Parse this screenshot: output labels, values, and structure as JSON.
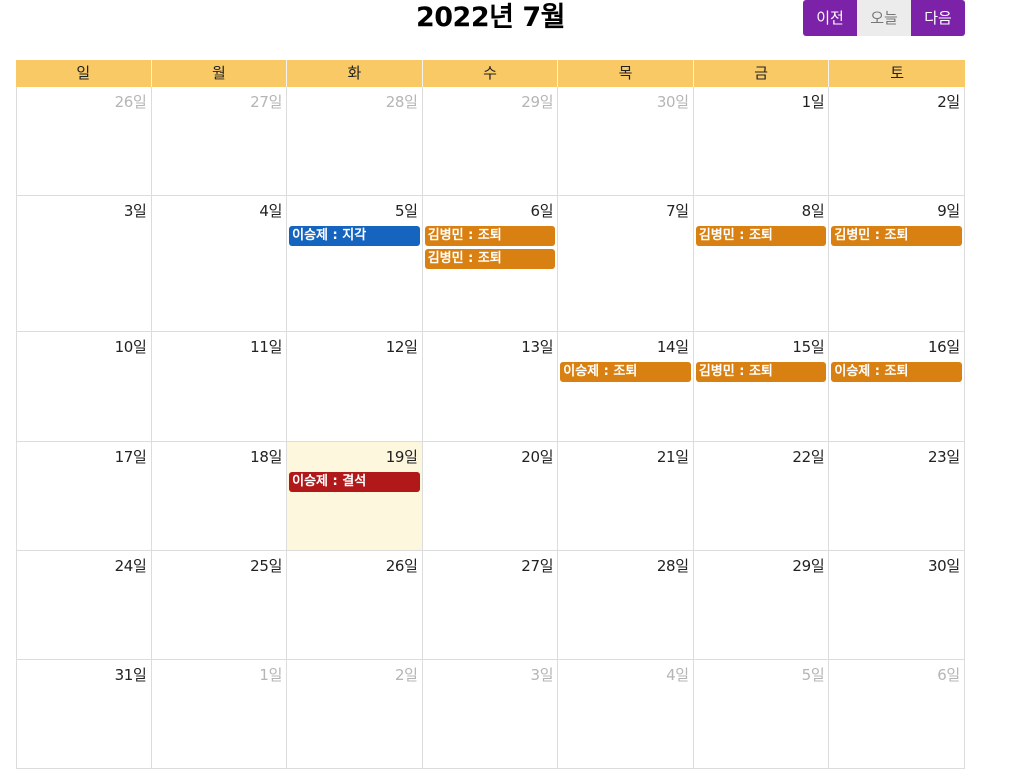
{
  "header": {
    "title": "2022년 7월",
    "prev_label": "이전",
    "today_label": "오늘",
    "next_label": "다음"
  },
  "colors": {
    "accent": "#7b22a8",
    "header_bg": "#f9c966",
    "today_bg": "#fdf7de",
    "late": "#1565c0",
    "early_leave": "#d98013",
    "absent": "#b0181a"
  },
  "weekdays": [
    "일",
    "월",
    "화",
    "수",
    "목",
    "금",
    "토"
  ],
  "weeks": [
    {
      "height": 108,
      "days": [
        {
          "label": "26일",
          "other": true
        },
        {
          "label": "27일",
          "other": true
        },
        {
          "label": "28일",
          "other": true
        },
        {
          "label": "29일",
          "other": true
        },
        {
          "label": "30일",
          "other": true
        },
        {
          "label": "1일"
        },
        {
          "label": "2일"
        }
      ]
    },
    {
      "height": 135,
      "days": [
        {
          "label": "3일"
        },
        {
          "label": "4일"
        },
        {
          "label": "5일",
          "events": [
            {
              "text": "이승제 : 지각",
              "type": "late"
            }
          ]
        },
        {
          "label": "6일",
          "events": [
            {
              "text": "김병민 : 조퇴",
              "type": "early_leave"
            },
            {
              "text": "김병민 : 조퇴",
              "type": "early_leave"
            }
          ]
        },
        {
          "label": "7일"
        },
        {
          "label": "8일",
          "events": [
            {
              "text": "김병민 : 조퇴",
              "type": "early_leave"
            }
          ]
        },
        {
          "label": "9일",
          "events": [
            {
              "text": "김병민 : 조퇴",
              "type": "early_leave"
            }
          ]
        }
      ]
    },
    {
      "height": 109,
      "days": [
        {
          "label": "10일"
        },
        {
          "label": "11일"
        },
        {
          "label": "12일"
        },
        {
          "label": "13일"
        },
        {
          "label": "14일",
          "events": [
            {
              "text": "이승제 : 조퇴",
              "type": "early_leave"
            }
          ]
        },
        {
          "label": "15일",
          "events": [
            {
              "text": "김병민 : 조퇴",
              "type": "early_leave"
            }
          ]
        },
        {
          "label": "16일",
          "events": [
            {
              "text": "이승제 : 조퇴",
              "type": "early_leave"
            }
          ]
        }
      ]
    },
    {
      "height": 108,
      "days": [
        {
          "label": "17일"
        },
        {
          "label": "18일"
        },
        {
          "label": "19일",
          "today": true,
          "events": [
            {
              "text": "이승제 : 결석",
              "type": "absent"
            }
          ]
        },
        {
          "label": "20일"
        },
        {
          "label": "21일"
        },
        {
          "label": "22일"
        },
        {
          "label": "23일"
        }
      ]
    },
    {
      "height": 108,
      "days": [
        {
          "label": "24일"
        },
        {
          "label": "25일"
        },
        {
          "label": "26일"
        },
        {
          "label": "27일"
        },
        {
          "label": "28일"
        },
        {
          "label": "29일"
        },
        {
          "label": "30일"
        }
      ]
    },
    {
      "height": 108,
      "days": [
        {
          "label": "31일"
        },
        {
          "label": "1일",
          "other": true
        },
        {
          "label": "2일",
          "other": true
        },
        {
          "label": "3일",
          "other": true
        },
        {
          "label": "4일",
          "other": true
        },
        {
          "label": "5일",
          "other": true
        },
        {
          "label": "6일",
          "other": true
        }
      ]
    }
  ]
}
